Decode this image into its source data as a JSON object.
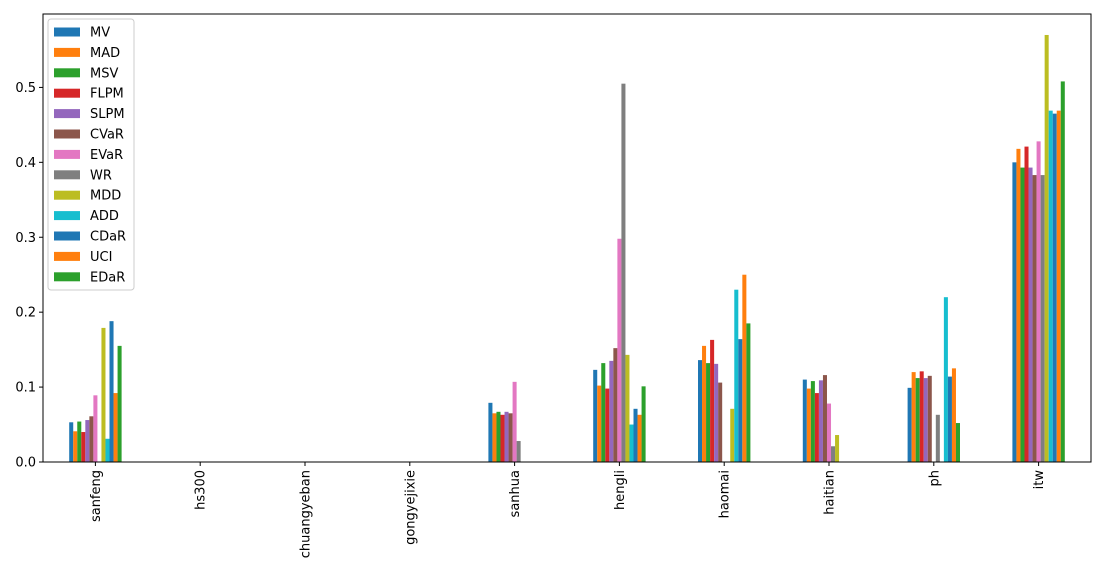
{
  "chart_data": {
    "type": "bar",
    "categories": [
      "sanfeng",
      "hs300",
      "chuangyeban",
      "gongyejixie",
      "sanhua",
      "hengli",
      "haomai",
      "haitian",
      "ph",
      "itw"
    ],
    "ylim": [
      0,
      0.598
    ],
    "yticks": [
      0.0,
      0.1,
      0.2,
      0.3,
      0.4,
      0.5
    ],
    "ytick_labels": [
      "0.0",
      "0.1",
      "0.2",
      "0.3",
      "0.4",
      "0.5"
    ],
    "legend_position": "upper-left",
    "grid": false,
    "series": [
      {
        "name": "MV",
        "color": "#1f77b4",
        "values": [
          0.053,
          0,
          0,
          0,
          0.079,
          0.123,
          0.136,
          0.11,
          0.099,
          0.4
        ]
      },
      {
        "name": "MAD",
        "color": "#ff7f0e",
        "values": [
          0.041,
          0,
          0,
          0,
          0.065,
          0.102,
          0.155,
          0.098,
          0.12,
          0.418
        ]
      },
      {
        "name": "MSV",
        "color": "#2ca02c",
        "values": [
          0.054,
          0,
          0,
          0,
          0.067,
          0.132,
          0.132,
          0.108,
          0.112,
          0.393
        ]
      },
      {
        "name": "FLPM",
        "color": "#d62728",
        "values": [
          0.04,
          0,
          0,
          0,
          0.063,
          0.098,
          0.163,
          0.092,
          0.121,
          0.421
        ]
      },
      {
        "name": "SLPM",
        "color": "#9467bd",
        "values": [
          0.056,
          0,
          0,
          0,
          0.067,
          0.135,
          0.131,
          0.109,
          0.112,
          0.393
        ]
      },
      {
        "name": "CVaR",
        "color": "#8c564b",
        "values": [
          0.061,
          0,
          0,
          0,
          0.065,
          0.152,
          0.106,
          0.116,
          0.115,
          0.383
        ]
      },
      {
        "name": "EVaR",
        "color": "#e377c2",
        "values": [
          0.089,
          0,
          0,
          0,
          0.107,
          0.298,
          0.0,
          0.078,
          0.0,
          0.428
        ]
      },
      {
        "name": "WR",
        "color": "#7f7f7f",
        "values": [
          0.0,
          0,
          0,
          0,
          0.028,
          0.505,
          0.0,
          0.021,
          0.063,
          0.383
        ]
      },
      {
        "name": "MDD",
        "color": "#bcbd22",
        "values": [
          0.179,
          0,
          0,
          0,
          0.0,
          0.143,
          0.071,
          0.036,
          0.0,
          0.57
        ]
      },
      {
        "name": "ADD",
        "color": "#17becf",
        "values": [
          0.031,
          0,
          0,
          0,
          0.0,
          0.05,
          0.23,
          0.0,
          0.22,
          0.469
        ]
      },
      {
        "name": "CDaR",
        "color": "#1f77b4",
        "values": [
          0.188,
          0,
          0,
          0,
          0.0,
          0.071,
          0.164,
          0.0,
          0.114,
          0.465
        ]
      },
      {
        "name": "UCI",
        "color": "#ff7f0e",
        "values": [
          0.092,
          0,
          0,
          0,
          0.0,
          0.063,
          0.25,
          0.0,
          0.125,
          0.469
        ]
      },
      {
        "name": "EDaR",
        "color": "#2ca02c",
        "values": [
          0.155,
          0,
          0,
          0,
          0.0,
          0.101,
          0.185,
          0.0,
          0.052,
          0.508
        ]
      }
    ]
  }
}
